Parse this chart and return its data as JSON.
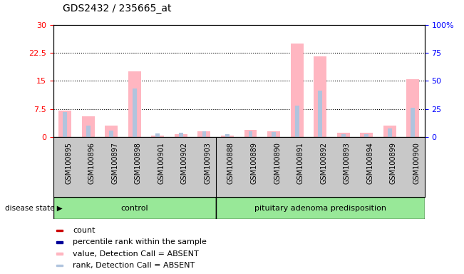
{
  "title": "GDS2432 / 235665_at",
  "samples": [
    "GSM100895",
    "GSM100896",
    "GSM100897",
    "GSM100898",
    "GSM100901",
    "GSM100902",
    "GSM100903",
    "GSM100888",
    "GSM100889",
    "GSM100890",
    "GSM100891",
    "GSM100892",
    "GSM100893",
    "GSM100894",
    "GSM100899",
    "GSM100900"
  ],
  "n_control": 7,
  "n_pituitary": 9,
  "value_absent": [
    7.0,
    5.5,
    3.0,
    17.5,
    0.3,
    0.8,
    1.5,
    0.3,
    2.0,
    1.5,
    25.0,
    21.5,
    1.2,
    1.2,
    3.0,
    15.5
  ],
  "rank_absent": [
    22.0,
    10.0,
    6.0,
    43.0,
    3.0,
    3.5,
    5.0,
    2.5,
    5.0,
    4.5,
    28.0,
    41.0,
    2.5,
    2.5,
    7.5,
    26.0
  ],
  "left_ylim": [
    0,
    30
  ],
  "right_ylim": [
    0,
    100
  ],
  "left_yticks": [
    0,
    7.5,
    15,
    22.5,
    30
  ],
  "right_yticks": [
    0,
    25,
    50,
    75,
    100
  ],
  "right_yticklabels": [
    "0",
    "25",
    "50",
    "75",
    "100%"
  ],
  "color_value_absent": "#FFB6C1",
  "color_rank_absent": "#B0C4DE",
  "color_count": "#CC0000",
  "color_percentile": "#000099",
  "bar_background": "#C8C8C8",
  "group_fill": "#98E898",
  "group_label_control": "control",
  "group_label_pit": "pituitary adenoma predisposition",
  "disease_state_label": "disease state",
  "legend_entries": [
    "count",
    "percentile rank within the sample",
    "value, Detection Call = ABSENT",
    "rank, Detection Call = ABSENT"
  ],
  "legend_colors": [
    "#CC0000",
    "#000099",
    "#FFB6C1",
    "#B0C4DE"
  ],
  "legend_marker_sizes": [
    6,
    6,
    10,
    10
  ],
  "title_fontsize": 10,
  "axis_fontsize": 8,
  "tick_fontsize": 7,
  "legend_fontsize": 8
}
